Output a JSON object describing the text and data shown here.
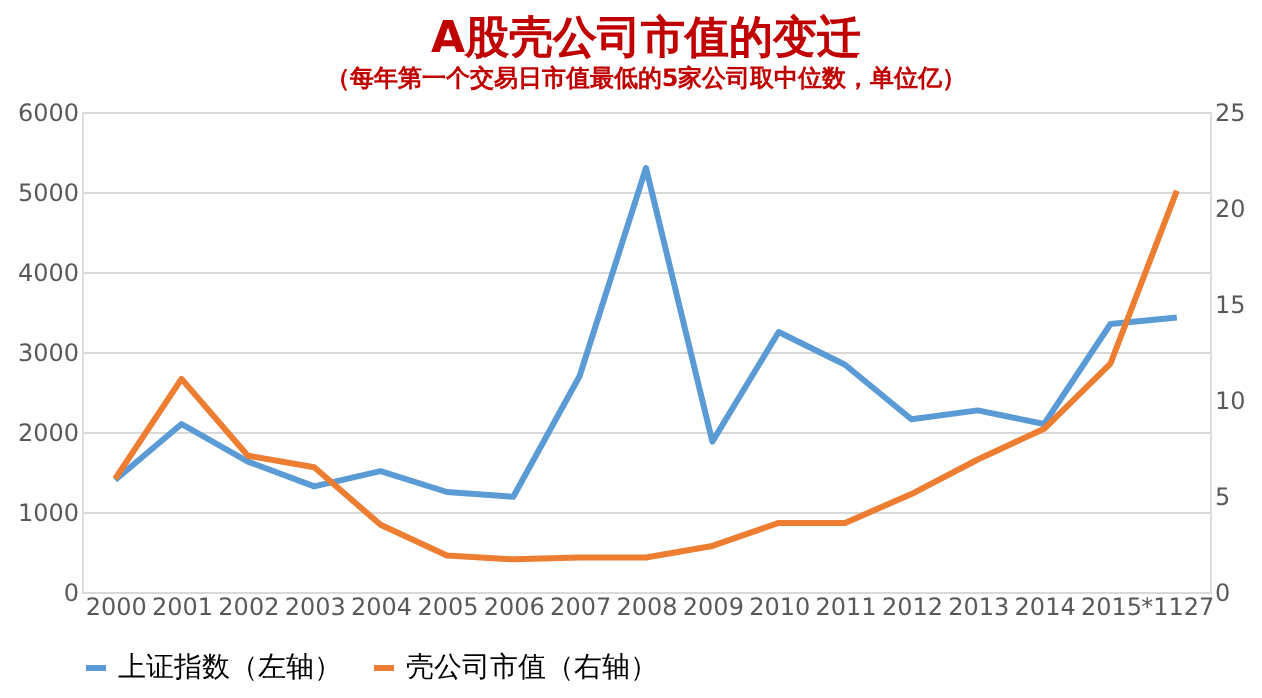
{
  "chart_data": {
    "type": "line",
    "title": "A股壳公司市值的变迁",
    "subtitle": "（每年第一个交易日市值最低的5家公司取中位数，单位亿）",
    "categories": [
      "2000",
      "2001",
      "2002",
      "2003",
      "2004",
      "2005",
      "2006",
      "2007",
      "2008",
      "2009",
      "2010",
      "2011",
      "2012",
      "2013",
      "2014",
      "2015",
      "*1127"
    ],
    "series": [
      {
        "name": "上证指数（左轴）",
        "color": "#5b9bd5",
        "values": [
          1400,
          2100,
          1630,
          1320,
          1510,
          1250,
          1190,
          2700,
          5300,
          1880,
          3250,
          2840,
          2160,
          2270,
          2100,
          3350,
          3430
        ]
      },
      {
        "name": "壳公司市值（右轴）",
        "color": "#ed7d31",
        "axis": "y2",
        "values": [
          5.9,
          11.1,
          7.1,
          6.5,
          3.5,
          1.9,
          1.7,
          1.8,
          1.8,
          2.4,
          3.6,
          3.6,
          5.1,
          6.9,
          8.5,
          11.9,
          20.9
        ]
      }
    ],
    "ylim": [
      0,
      6000
    ],
    "yticks": [
      0,
      1000,
      2000,
      3000,
      4000,
      5000,
      6000
    ],
    "y2lim": [
      0,
      25
    ],
    "y2ticks": [
      0,
      5,
      10,
      15,
      20,
      25
    ],
    "grid": "y",
    "legend": "bottom",
    "marker": "none",
    "line_style": "solid"
  }
}
